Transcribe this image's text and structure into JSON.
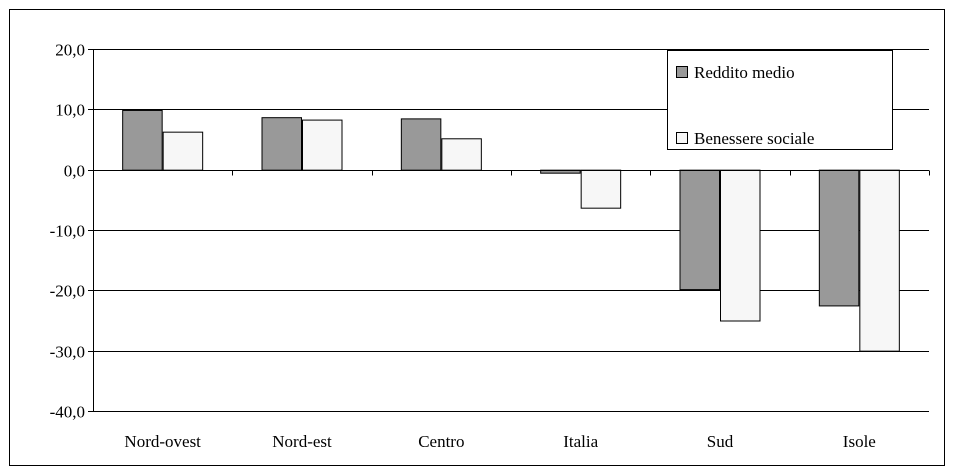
{
  "chart_data": {
    "type": "bar",
    "categories": [
      "Nord-ovest",
      "Nord-est",
      "Centro",
      "Italia",
      "Sud",
      "Isole"
    ],
    "series": [
      {
        "name": "Reddito medio",
        "color": "#999999",
        "values": [
          9.9,
          8.7,
          8.5,
          -0.5,
          -19.8,
          -22.5
        ]
      },
      {
        "name": "Benessere sociale",
        "color": "#f7f7f7",
        "values": [
          6.3,
          8.3,
          5.2,
          -6.3,
          -25.0,
          -30.0
        ]
      }
    ],
    "ylim": [
      -40,
      20
    ],
    "yticks": [
      20,
      10,
      0,
      -10,
      -20,
      -30,
      -40
    ],
    "ytick_labels": [
      "20,0",
      "10,0",
      "0,0",
      "-10,0",
      "-20,0",
      "-30,0",
      "-40,0"
    ],
    "gridlines": true,
    "legend_position": "top-right",
    "title": "",
    "xlabel": "",
    "ylabel": ""
  }
}
